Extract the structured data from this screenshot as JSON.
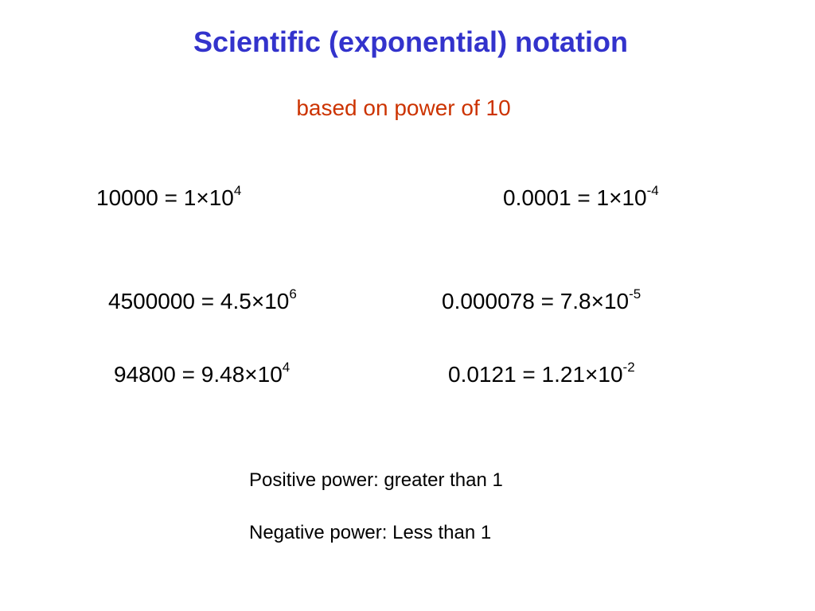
{
  "title": "Scientific (exponential) notation",
  "subtitle": "based on power of 10",
  "equations": [
    {
      "base": "10000 = 1×10",
      "exp": "4"
    },
    {
      "base": "0.0001 = 1×10",
      "exp": "-4"
    },
    {
      "base": "4500000 = 4.5×10",
      "exp": "6"
    },
    {
      "base": "0.000078 = 7.8×10",
      "exp": "-5"
    },
    {
      "base": "94800 = 9.48×10",
      "exp": "4"
    },
    {
      "base": "0.0121 = 1.21×10",
      "exp": "-2"
    }
  ],
  "notes": {
    "positive": "Positive power: greater than 1",
    "negative": "Negative power: Less than 1"
  },
  "colors": {
    "title": "#3333cc",
    "subtitle": "#cc3300",
    "text": "#000000"
  }
}
